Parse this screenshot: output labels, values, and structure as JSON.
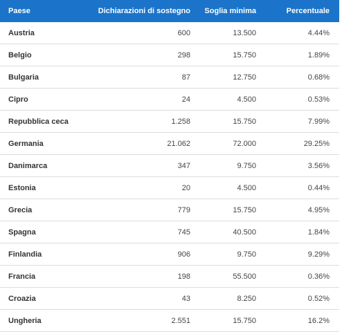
{
  "table": {
    "header": [
      "Paese",
      "Dichiarazioni di sostegno",
      "Soglia minima",
      "Percentuale"
    ],
    "rows": [
      [
        "Austria",
        "600",
        "13.500",
        "4.44%"
      ],
      [
        "Belgio",
        "298",
        "15.750",
        "1.89%"
      ],
      [
        "Bulgaria",
        "87",
        "12.750",
        "0.68%"
      ],
      [
        "Cipro",
        "24",
        "4.500",
        "0.53%"
      ],
      [
        "Repubblica ceca",
        "1.258",
        "15.750",
        "7.99%"
      ],
      [
        "Germania",
        "21.062",
        "72.000",
        "29.25%"
      ],
      [
        "Danimarca",
        "347",
        "9.750",
        "3.56%"
      ],
      [
        "Estonia",
        "20",
        "4.500",
        "0.44%"
      ],
      [
        "Grecia",
        "779",
        "15.750",
        "4.95%"
      ],
      [
        "Spagna",
        "745",
        "40.500",
        "1.84%"
      ],
      [
        "Finlandia",
        "906",
        "9.750",
        "9.29%"
      ],
      [
        "Francia",
        "198",
        "55.500",
        "0.36%"
      ],
      [
        "Croazia",
        "43",
        "8.250",
        "0.52%"
      ],
      [
        "Ungheria",
        "2.551",
        "15.750",
        "16.2%"
      ]
    ]
  }
}
